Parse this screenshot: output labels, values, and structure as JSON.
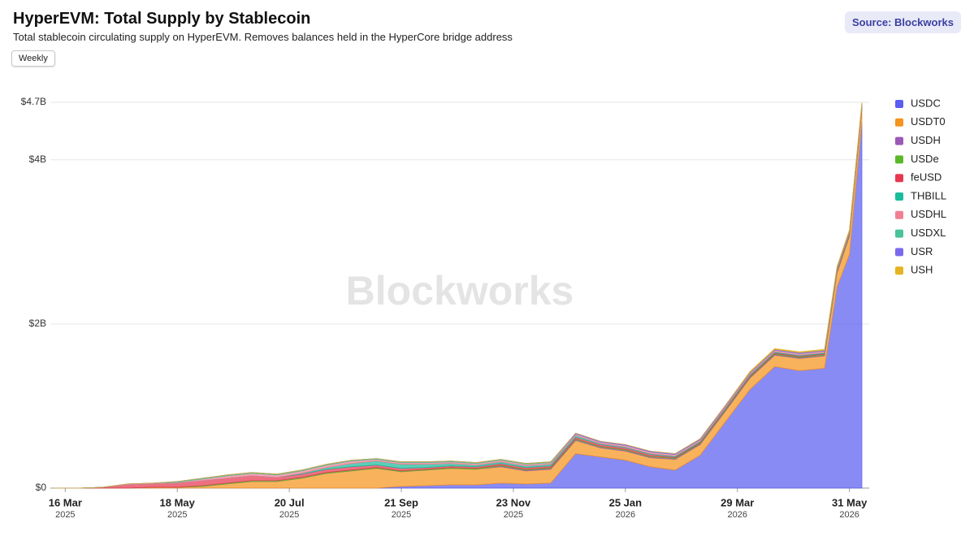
{
  "chart_data": {
    "type": "stacked_area",
    "title": "HyperEVM: Total Supply by Stablecoin",
    "subtitle": "Total stablecoin circulating supply on HyperEVM. Removes balances held in the HyperCore bridge address",
    "button": "Weekly",
    "source": "Source: Blockworks",
    "watermark": "Blockworks",
    "x": [
      "2025-03-09",
      "2025-03-23",
      "2025-04-06",
      "2025-04-20",
      "2025-05-04",
      "2025-05-18",
      "2025-06-01",
      "2025-06-15",
      "2025-06-29",
      "2025-07-13",
      "2025-07-27",
      "2025-08-10",
      "2025-08-24",
      "2025-09-07",
      "2025-09-21",
      "2025-10-05",
      "2025-10-19",
      "2025-11-02",
      "2025-11-16",
      "2025-11-30",
      "2025-12-14",
      "2025-12-28",
      "2026-01-11",
      "2026-01-25",
      "2026-02-08",
      "2026-02-22",
      "2026-03-08",
      "2026-03-22",
      "2026-04-05",
      "2026-04-19",
      "2026-05-03",
      "2026-05-17",
      "2026-05-24",
      "2026-05-31",
      "2026-06-07"
    ],
    "xlim": [
      "2025-03-09",
      "2026-06-07"
    ],
    "xticks": [
      {
        "value": "2025-03-16",
        "label": "16 Mar",
        "year": "2025"
      },
      {
        "value": "2025-05-18",
        "label": "18 May",
        "year": "2025"
      },
      {
        "value": "2025-07-20",
        "label": "20 Jul",
        "year": "2025"
      },
      {
        "value": "2025-09-21",
        "label": "21 Sep",
        "year": "2025"
      },
      {
        "value": "2025-11-23",
        "label": "23 Nov",
        "year": "2025"
      },
      {
        "value": "2026-01-25",
        "label": "25 Jan",
        "year": "2026"
      },
      {
        "value": "2026-03-29",
        "label": "29 Mar",
        "year": "2026"
      },
      {
        "value": "2026-05-31",
        "label": "31 May",
        "year": "2026"
      }
    ],
    "ylim": [
      0,
      4.7
    ],
    "yticks": [
      {
        "value": 0,
        "label": "$0"
      },
      {
        "value": 2,
        "label": "$2B"
      },
      {
        "value": 4,
        "label": "$4B"
      },
      {
        "value": 4.7,
        "label": "$4.7B"
      }
    ],
    "grid": true,
    "legend": "right",
    "series": [
      {
        "name": "USDC",
        "color": "#5b5ef0",
        "values": [
          0,
          0,
          0,
          0,
          0,
          0,
          0,
          0,
          0,
          0,
          0,
          0,
          0,
          0,
          0.02,
          0.03,
          0.04,
          0.04,
          0.06,
          0.05,
          0.06,
          0.42,
          0.38,
          0.34,
          0.26,
          0.22,
          0.4,
          0.8,
          1.2,
          1.48,
          1.43,
          1.46,
          2.45,
          2.85,
          4.45
        ]
      },
      {
        "name": "USDT0",
        "color": "#f7941d",
        "values": [
          0,
          0,
          0,
          0,
          0.01,
          0.01,
          0.02,
          0.05,
          0.08,
          0.08,
          0.12,
          0.18,
          0.21,
          0.24,
          0.18,
          0.19,
          0.2,
          0.19,
          0.2,
          0.16,
          0.17,
          0.16,
          0.11,
          0.11,
          0.11,
          0.13,
          0.13,
          0.13,
          0.14,
          0.14,
          0.15,
          0.15,
          0.17,
          0.22,
          0.17
        ]
      },
      {
        "name": "USDH",
        "color": "#9b59b6",
        "values": [
          0,
          0,
          0,
          0,
          0,
          0,
          0,
          0,
          0,
          0,
          0,
          0,
          0,
          0,
          0,
          0,
          0,
          0,
          0.01,
          0.01,
          0.01,
          0.01,
          0.01,
          0.01,
          0.01,
          0.01,
          0.01,
          0.01,
          0.01,
          0.01,
          0.01,
          0.01,
          0.01,
          0.01,
          0.01
        ]
      },
      {
        "name": "USDe",
        "color": "#5cb82a",
        "values": [
          0,
          0,
          0,
          0,
          0,
          0,
          0.01,
          0.01,
          0.01,
          0.01,
          0.01,
          0.01,
          0.01,
          0.01,
          0.01,
          0.01,
          0.01,
          0.01,
          0.01,
          0.01,
          0.01,
          0.01,
          0.01,
          0.01,
          0.01,
          0.01,
          0.01,
          0.01,
          0.01,
          0.01,
          0.01,
          0.01,
          0.01,
          0.01,
          0.01
        ]
      },
      {
        "name": "feUSD",
        "color": "#e8384f",
        "values": [
          0,
          0,
          0.01,
          0.04,
          0.04,
          0.05,
          0.06,
          0.06,
          0.06,
          0.04,
          0.04,
          0.04,
          0.04,
          0.03,
          0.03,
          0.02,
          0.02,
          0.02,
          0.02,
          0.02,
          0.02,
          0.02,
          0.02,
          0.02,
          0.02,
          0.01,
          0.01,
          0.01,
          0.01,
          0.01,
          0.01,
          0.01,
          0.01,
          0.01,
          0.01
        ]
      },
      {
        "name": "THBILL",
        "color": "#1abc9c",
        "values": [
          0,
          0,
          0,
          0,
          0,
          0,
          0,
          0,
          0,
          0,
          0.01,
          0.02,
          0.04,
          0.05,
          0.05,
          0.04,
          0.03,
          0.02,
          0.02,
          0.02,
          0.02,
          0.02,
          0.01,
          0.01,
          0.01,
          0.01,
          0.01,
          0.01,
          0.01,
          0.01,
          0.01,
          0.01,
          0.01,
          0.01,
          0.01
        ]
      },
      {
        "name": "USDHL",
        "color": "#f07f95",
        "values": [
          0,
          0,
          0,
          0.01,
          0.01,
          0.01,
          0.02,
          0.03,
          0.03,
          0.03,
          0.03,
          0.03,
          0.03,
          0.02,
          0.02,
          0.02,
          0.02,
          0.02,
          0.02,
          0.02,
          0.02,
          0.02,
          0.02,
          0.02,
          0.02,
          0.02,
          0.02,
          0.02,
          0.02,
          0.02,
          0.02,
          0.02,
          0.02,
          0.02,
          0.02
        ]
      },
      {
        "name": "USDXL",
        "color": "#48c39b",
        "values": [
          0,
          0,
          0,
          0,
          0,
          0.01,
          0.01,
          0.01,
          0.01,
          0.01,
          0.01,
          0.01,
          0.01,
          0.01,
          0.01,
          0.01,
          0.01,
          0.01,
          0.01,
          0.01,
          0.01,
          0,
          0,
          0,
          0,
          0,
          0,
          0,
          0,
          0,
          0,
          0,
          0,
          0,
          0
        ]
      },
      {
        "name": "USR",
        "color": "#7b68ee",
        "values": [
          0,
          0,
          0,
          0,
          0,
          0,
          0,
          0,
          0,
          0,
          0,
          0,
          0,
          0,
          0,
          0,
          0,
          0,
          0,
          0,
          0,
          0.01,
          0.01,
          0.01,
          0.01,
          0.01,
          0.01,
          0.01,
          0.01,
          0.01,
          0.01,
          0.01,
          0.01,
          0.01,
          0.01
        ]
      },
      {
        "name": "USH",
        "color": "#e6b422",
        "values": [
          0,
          0,
          0,
          0,
          0,
          0,
          0,
          0,
          0,
          0,
          0,
          0,
          0,
          0,
          0,
          0,
          0,
          0,
          0,
          0,
          0,
          0,
          0,
          0,
          0,
          0,
          0,
          0,
          0.01,
          0.01,
          0.01,
          0.01,
          0.01,
          0.01,
          0.01
        ]
      }
    ]
  }
}
